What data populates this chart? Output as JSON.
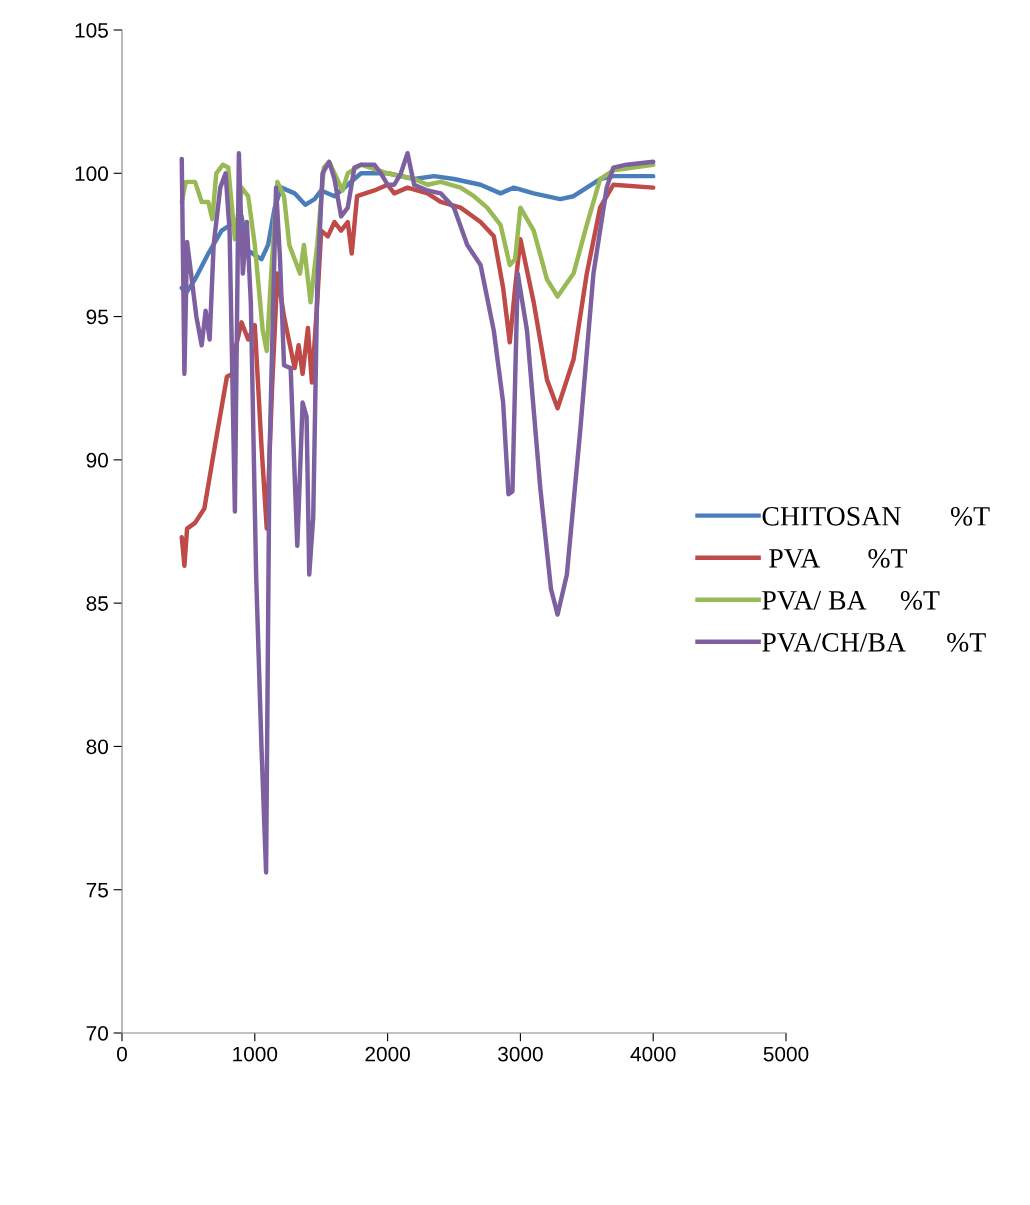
{
  "chart_data": {
    "type": "line",
    "xlim": [
      0,
      5000
    ],
    "xticks": [
      0,
      1000,
      2000,
      3000,
      4000,
      5000
    ],
    "ylim": [
      70,
      105
    ],
    "yticks": [
      70,
      75,
      80,
      85,
      90,
      95,
      100,
      105
    ],
    "grid": false,
    "legend": "right",
    "marker": "none",
    "line_style": "solid",
    "series": [
      {
        "name": "CHITOSAN       %T",
        "color": "#4a7ebb",
        "x": [
          450,
          480,
          550,
          650,
          750,
          850,
          900,
          950,
          1050,
          1100,
          1150,
          1200,
          1300,
          1380,
          1450,
          1500,
          1600,
          1700,
          1800,
          2000,
          2200,
          2350,
          2500,
          2700,
          2850,
          2950,
          3100,
          3300,
          3400,
          3600,
          3700,
          4000
        ],
        "values": [
          96.0,
          95.8,
          96.3,
          97.2,
          98.0,
          98.3,
          98.5,
          97.3,
          97.0,
          97.5,
          98.8,
          99.5,
          99.3,
          98.9,
          99.1,
          99.4,
          99.2,
          99.6,
          100.0,
          100.0,
          99.8,
          99.9,
          99.8,
          99.6,
          99.3,
          99.5,
          99.3,
          99.1,
          99.2,
          99.8,
          99.9,
          99.9
        ]
      },
      {
        "name": " PVA       %T",
        "color": "#be4b48",
        "x": [
          450,
          470,
          490,
          550,
          620,
          700,
          790,
          830,
          860,
          900,
          950,
          1000,
          1050,
          1090,
          1130,
          1170,
          1220,
          1300,
          1330,
          1360,
          1400,
          1430,
          1470,
          1500,
          1550,
          1600,
          1650,
          1700,
          1730,
          1770,
          1900,
          2000,
          2050,
          2150,
          2300,
          2400,
          2550,
          2700,
          2800,
          2870,
          2920,
          2960,
          3000,
          3100,
          3200,
          3280,
          3400,
          3500,
          3600,
          3700,
          4000
        ],
        "values": [
          87.3,
          86.3,
          87.6,
          87.8,
          88.3,
          90.5,
          92.9,
          93.0,
          94.0,
          94.8,
          94.2,
          94.7,
          90.5,
          87.6,
          92.5,
          96.5,
          95.0,
          93.2,
          94.0,
          93.0,
          94.6,
          92.7,
          95.5,
          98.0,
          97.8,
          98.3,
          98.0,
          98.3,
          97.2,
          99.2,
          99.4,
          99.6,
          99.3,
          99.5,
          99.3,
          99.0,
          98.8,
          98.3,
          97.8,
          96.0,
          94.1,
          96.0,
          97.7,
          95.5,
          92.8,
          91.8,
          93.5,
          96.5,
          98.8,
          99.6,
          99.5
        ]
      },
      {
        "name": "PVA/ BA     %T",
        "color": "#98b954",
        "x": [
          450,
          480,
          550,
          600,
          650,
          680,
          710,
          760,
          800,
          850,
          900,
          950,
          1000,
          1060,
          1090,
          1130,
          1170,
          1220,
          1260,
          1300,
          1340,
          1370,
          1420,
          1470,
          1520,
          1560,
          1620,
          1660,
          1700,
          1800,
          2000,
          2200,
          2300,
          2400,
          2550,
          2650,
          2750,
          2850,
          2920,
          2960,
          3000,
          3100,
          3200,
          3280,
          3400,
          3500,
          3600,
          3700,
          4000
        ],
        "values": [
          99.0,
          99.7,
          99.7,
          99.0,
          99.0,
          98.4,
          100.0,
          100.3,
          100.2,
          97.7,
          99.5,
          99.2,
          97.5,
          94.5,
          93.8,
          97.0,
          99.7,
          99.2,
          97.5,
          97.0,
          96.5,
          97.5,
          95.5,
          97.5,
          100.2,
          100.4,
          99.8,
          99.4,
          100.0,
          100.3,
          100.0,
          99.8,
          99.6,
          99.7,
          99.5,
          99.2,
          98.8,
          98.2,
          96.8,
          97.0,
          98.8,
          98.0,
          96.3,
          95.7,
          96.5,
          98.2,
          99.8,
          100.1,
          100.3
        ]
      },
      {
        "name": "PVA/CH/BA      %T",
        "color": "#7d60a0",
        "x": [
          450,
          470,
          490,
          520,
          560,
          600,
          630,
          660,
          690,
          740,
          780,
          810,
          850,
          880,
          910,
          940,
          970,
          1010,
          1050,
          1085,
          1110,
          1160,
          1190,
          1220,
          1270,
          1320,
          1360,
          1390,
          1410,
          1440,
          1470,
          1510,
          1560,
          1600,
          1650,
          1700,
          1750,
          1800,
          1900,
          1950,
          2000,
          2050,
          2100,
          2150,
          2200,
          2300,
          2400,
          2500,
          2600,
          2700,
          2800,
          2870,
          2910,
          2940,
          2980,
          3050,
          3150,
          3230,
          3280,
          3350,
          3450,
          3550,
          3650,
          3700,
          3800,
          4000
        ],
        "values": [
          100.5,
          93.0,
          97.6,
          96.5,
          95.0,
          94.0,
          95.2,
          94.2,
          97.5,
          99.5,
          100.0,
          98.0,
          88.2,
          100.7,
          96.5,
          98.3,
          95.5,
          86.0,
          80.0,
          75.6,
          90.0,
          99.5,
          97.0,
          93.3,
          93.2,
          87.0,
          92.0,
          91.5,
          86.0,
          88.0,
          96.0,
          100.0,
          100.4,
          99.8,
          98.5,
          98.8,
          100.2,
          100.3,
          100.3,
          100.0,
          99.6,
          99.6,
          100.0,
          100.7,
          99.6,
          99.4,
          99.3,
          98.8,
          97.5,
          96.8,
          94.5,
          92.0,
          88.8,
          88.9,
          96.5,
          94.5,
          89.0,
          85.5,
          84.6,
          86.0,
          91.0,
          96.5,
          99.5,
          100.2,
          100.3,
          100.4
        ]
      }
    ]
  }
}
